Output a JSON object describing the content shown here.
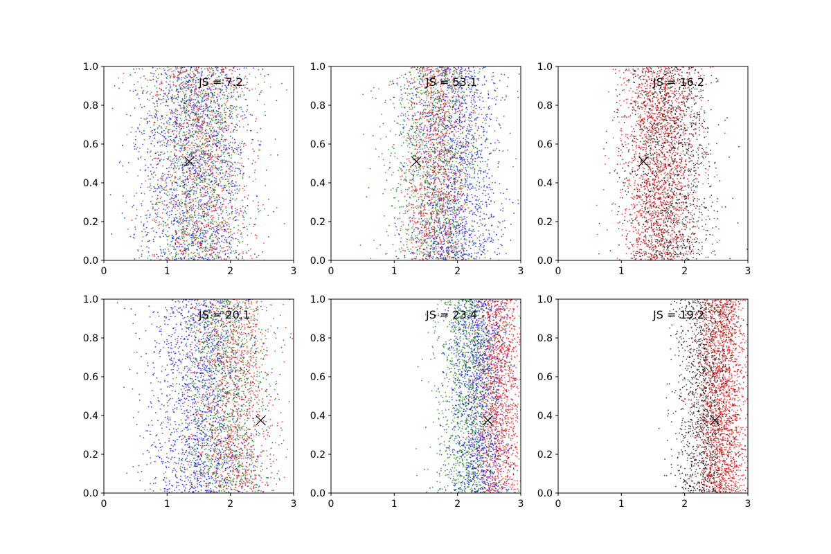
{
  "chart_data": [
    {
      "type": "scatter",
      "title": "",
      "xlabel": "",
      "ylabel": "",
      "xlim": [
        0,
        3
      ],
      "ylim": [
        0,
        1
      ],
      "xticks": [
        "0",
        "1",
        "2",
        "3"
      ],
      "yticks": [
        "0.0",
        "0.2",
        "0.4",
        "0.6",
        "0.8",
        "1.0"
      ],
      "grid": false,
      "annotation": "JS = 7.2",
      "marker": {
        "symbol": "x",
        "x": 1.35,
        "y": 0.51
      },
      "series": [
        {
          "color": "#0000ff",
          "x_center": 1.45,
          "x_spread": 0.85,
          "approx_points": 1500
        },
        {
          "color": "#008000",
          "x_center": 1.45,
          "x_spread": 0.75,
          "approx_points": 1200
        },
        {
          "color": "#ff0000",
          "x_center": 1.55,
          "x_spread": 0.75,
          "approx_points": 1000
        }
      ]
    },
    {
      "type": "scatter",
      "title": "",
      "xlabel": "",
      "ylabel": "",
      "xlim": [
        0,
        3
      ],
      "ylim": [
        0,
        1
      ],
      "xticks": [
        "0",
        "1",
        "2",
        "3"
      ],
      "yticks": [
        "0.0",
        "0.2",
        "0.4",
        "0.6",
        "0.8",
        "1.0"
      ],
      "grid": false,
      "annotation": "JS = 53.1",
      "marker": {
        "symbol": "x",
        "x": 1.35,
        "y": 0.51
      },
      "series": [
        {
          "color": "#0000ff",
          "x_center": 1.95,
          "x_spread": 0.7,
          "approx_points": 1500
        },
        {
          "color": "#008000",
          "x_center": 1.7,
          "x_spread": 0.7,
          "approx_points": 1200
        },
        {
          "color": "#ff0000",
          "x_center": 1.65,
          "x_spread": 0.5,
          "approx_points": 1000
        }
      ]
    },
    {
      "type": "scatter",
      "title": "",
      "xlabel": "",
      "ylabel": "",
      "xlim": [
        0,
        3
      ],
      "ylim": [
        0,
        1
      ],
      "xticks": [
        "0",
        "1",
        "2",
        "3"
      ],
      "yticks": [
        "0.0",
        "0.2",
        "0.4",
        "0.6",
        "0.8",
        "1.0"
      ],
      "grid": false,
      "annotation": "JS = 16.2",
      "marker": {
        "symbol": "x",
        "x": 1.35,
        "y": 0.51
      },
      "series": [
        {
          "color": "#000000",
          "x_center": 1.75,
          "x_spread": 0.65,
          "approx_points": 1600
        },
        {
          "color": "#ff0000",
          "x_center": 1.6,
          "x_spread": 0.55,
          "approx_points": 1600
        }
      ]
    },
    {
      "type": "scatter",
      "title": "",
      "xlabel": "",
      "ylabel": "",
      "xlim": [
        0,
        3
      ],
      "ylim": [
        0,
        1
      ],
      "xticks": [
        "0",
        "1",
        "2",
        "3"
      ],
      "yticks": [
        "0.0",
        "0.2",
        "0.4",
        "0.6",
        "0.8",
        "1.0"
      ],
      "grid": false,
      "annotation": "JS = 20.1",
      "marker": {
        "symbol": "x",
        "x": 2.48,
        "y": 0.375
      },
      "series": [
        {
          "color": "#0000ff",
          "x_center": 1.55,
          "x_spread": 0.8,
          "approx_points": 1500
        },
        {
          "color": "#008000",
          "x_center": 1.9,
          "x_spread": 0.65,
          "approx_points": 1200
        },
        {
          "color": "#ff0000",
          "x_center": 2.0,
          "x_spread": 0.65,
          "approx_points": 1000
        }
      ]
    },
    {
      "type": "scatter",
      "title": "",
      "xlabel": "",
      "ylabel": "",
      "xlim": [
        0,
        3
      ],
      "ylim": [
        0,
        1
      ],
      "xticks": [
        "0",
        "1",
        "2",
        "3"
      ],
      "yticks": [
        "0.0",
        "0.2",
        "0.4",
        "0.6",
        "0.8",
        "1.0"
      ],
      "grid": false,
      "annotation": "JS = 23.4",
      "marker": {
        "symbol": "x",
        "x": 2.48,
        "y": 0.375
      },
      "series": [
        {
          "color": "#0000ff",
          "x_center": 2.35,
          "x_spread": 0.45,
          "approx_points": 1400
        },
        {
          "color": "#008000",
          "x_center": 2.2,
          "x_spread": 0.5,
          "approx_points": 1200
        },
        {
          "color": "#ff0000",
          "x_center": 2.65,
          "x_spread": 0.35,
          "approx_points": 1200
        }
      ]
    },
    {
      "type": "scatter",
      "title": "",
      "xlabel": "",
      "ylabel": "",
      "xlim": [
        0,
        3
      ],
      "ylim": [
        0,
        1
      ],
      "xticks": [
        "0",
        "1",
        "2",
        "3"
      ],
      "yticks": [
        "0.0",
        "0.2",
        "0.4",
        "0.6",
        "0.8",
        "1.0"
      ],
      "grid": false,
      "annotation": "JS = 19.2",
      "marker": {
        "symbol": "x",
        "x": 2.48,
        "y": 0.375
      },
      "series": [
        {
          "color": "#000000",
          "x_center": 2.35,
          "x_spread": 0.45,
          "approx_points": 1500
        },
        {
          "color": "#ff0000",
          "x_center": 2.6,
          "x_spread": 0.38,
          "approx_points": 1700
        }
      ]
    }
  ]
}
